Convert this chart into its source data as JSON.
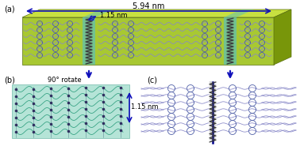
{
  "panel_a_label": "(a)",
  "panel_b_label": "(b)",
  "panel_c_label": "(c)",
  "dim_594": "5.94 nm",
  "dim_115": "1.15 nm",
  "rotate_label": "90° rotate",
  "block_green": "#a8c832",
  "block_green_top": "#c8e040",
  "block_green_dark": "#78960a",
  "block_teal": "#60c0b0",
  "chain_color": "#8888c8",
  "ring_color": "#5060a8",
  "helix_dark": "#303030",
  "arrow_blue": "#1010bb",
  "bg_b": "#a8e0d0",
  "dot_color": "#303060",
  "label_fs": 7,
  "annot_fs": 6
}
